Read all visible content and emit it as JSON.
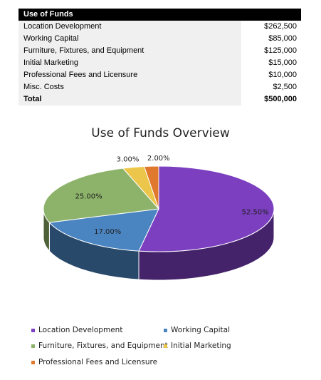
{
  "table": {
    "header": "Use of Funds",
    "rows": [
      {
        "label": "Location Development",
        "value": "$262,500"
      },
      {
        "label": "Working Capital",
        "value": "$85,000"
      },
      {
        "label": "Furniture, Fixtures, and Equipment",
        "value": "$125,000"
      },
      {
        "label": "Initial Marketing",
        "value": "$15,000"
      },
      {
        "label": "Professional Fees and Licensure",
        "value": "$10,000"
      },
      {
        "label": "Misc. Costs",
        "value": "$2,500"
      }
    ],
    "total": {
      "label": "Total",
      "value": "$500,000"
    }
  },
  "chart_data": {
    "type": "pie",
    "title": "Use of Funds Overview",
    "categories": [
      "Location Development",
      "Working Capital",
      "Furniture, Fixtures, and Equipment",
      "Initial Marketing",
      "Professional Fees and Licensure"
    ],
    "values": [
      52.5,
      17.0,
      25.0,
      3.0,
      2.0
    ],
    "data_labels": [
      "52.50%",
      "17.00%",
      "25.00%",
      "3.00%",
      "2.00%"
    ],
    "colors": [
      "#7b3fc0",
      "#4a85c2",
      "#8db36a",
      "#ecc64a",
      "#e0792e"
    ],
    "legend": {
      "position": "bottom",
      "entries": [
        "Location Development",
        "Working Capital",
        "Furniture, Fixtures, and Equipment",
        "Initial Marketing",
        "Professional Fees and Licensure"
      ]
    },
    "style": "3d-pie"
  }
}
